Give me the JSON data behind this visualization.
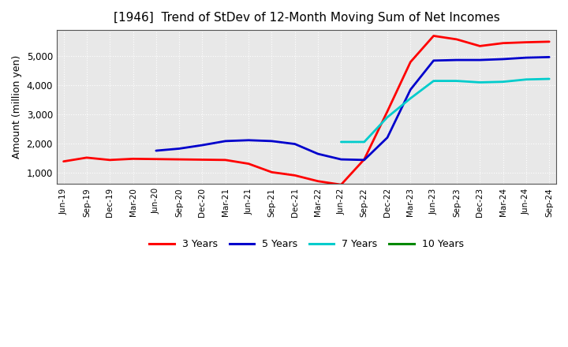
{
  "title": "[1946]  Trend of StDev of 12-Month Moving Sum of Net Incomes",
  "ylabel": "Amount (million yen)",
  "plot_bg_color": "#e8e8e8",
  "fig_bg_color": "#ffffff",
  "grid_color": "#ffffff",
  "x_labels": [
    "Jun-19",
    "Sep-19",
    "Dec-19",
    "Mar-20",
    "Jun-20",
    "Sep-20",
    "Dec-20",
    "Mar-21",
    "Jun-21",
    "Sep-21",
    "Dec-21",
    "Mar-22",
    "Jun-22",
    "Sep-22",
    "Dec-22",
    "Mar-23",
    "Jun-23",
    "Sep-23",
    "Dec-23",
    "Mar-24",
    "Jun-24",
    "Sep-24"
  ],
  "series": {
    "3 Years": {
      "color": "#ff0000",
      "values": [
        1380,
        1510,
        1430,
        1470,
        1460,
        1450,
        1440,
        1430,
        1300,
        1010,
        900,
        700,
        580,
        1450,
        3100,
        4800,
        5700,
        5580,
        5350,
        5450,
        5480,
        5500
      ]
    },
    "5 Years": {
      "color": "#0000cc",
      "values": [
        null,
        null,
        null,
        null,
        1750,
        1820,
        1940,
        2080,
        2110,
        2080,
        1980,
        1640,
        1450,
        1430,
        2200,
        3850,
        4850,
        4870,
        4870,
        4900,
        4950,
        4970
      ]
    },
    "7 Years": {
      "color": "#00cccc",
      "values": [
        null,
        null,
        null,
        null,
        null,
        null,
        null,
        null,
        null,
        null,
        null,
        null,
        2050,
        2050,
        2900,
        3550,
        4150,
        4150,
        4100,
        4120,
        4200,
        4220
      ]
    },
    "10 Years": {
      "color": "#008800",
      "values": [
        null,
        null,
        null,
        null,
        null,
        null,
        null,
        null,
        null,
        null,
        null,
        null,
        null,
        null,
        null,
        null,
        null,
        null,
        null,
        null,
        null,
        null
      ]
    }
  },
  "ylim": [
    600,
    5900
  ],
  "yticks": [
    1000,
    2000,
    3000,
    4000,
    5000
  ],
  "legend_labels": [
    "3 Years",
    "5 Years",
    "7 Years",
    "10 Years"
  ],
  "legend_colors": [
    "#ff0000",
    "#0000cc",
    "#00cccc",
    "#008800"
  ]
}
